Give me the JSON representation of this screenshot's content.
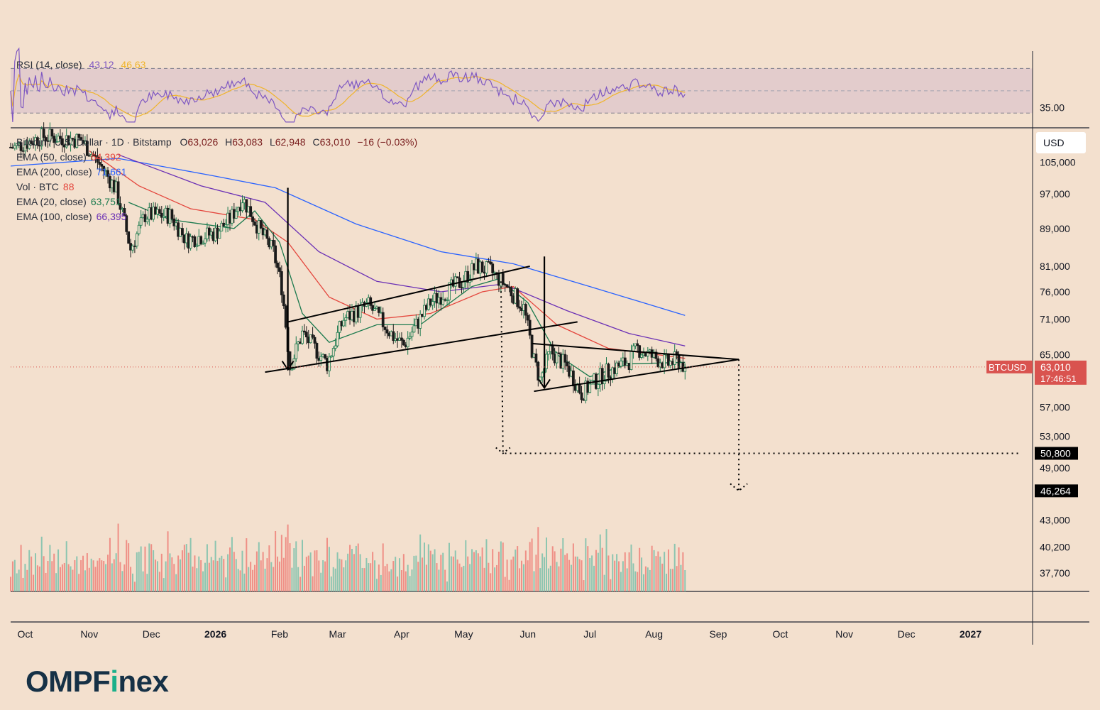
{
  "brand": {
    "logo_main": "OMPF",
    "logo_accent": "i",
    "logo_tail": "nex"
  },
  "rsi_legend": {
    "label": "RSI (14, close)",
    "rsi_value": "43.12",
    "ma_value": "46.63"
  },
  "main_legend": {
    "symbol_line": "Bitcoin / U.S. Dollar · 1D · Bitstamp",
    "ohlc": [
      {
        "k": "O",
        "v": "63,026"
      },
      {
        "k": "H",
        "v": "63,083"
      },
      {
        "k": "L",
        "v": "62,948"
      },
      {
        "k": "C",
        "v": "63,010"
      }
    ],
    "change": "−16 (−0.03%)",
    "indicators": [
      {
        "label": "EMA (50, close)",
        "value": "64,392",
        "color": "#e4463d"
      },
      {
        "label": "EMA (200, close)",
        "value": "71,661",
        "color": "#2962ff"
      },
      {
        "label": "Vol · BTC",
        "value": "88",
        "color": "#e4463d"
      },
      {
        "label": "EMA (20, close)",
        "value": "63,751",
        "color": "#1b7a4e"
      },
      {
        "label": "EMA (100, close)",
        "value": "66,395",
        "color": "#6a2fb5"
      }
    ]
  },
  "price_axis": {
    "currency": "USD",
    "ticks": [
      "105,000",
      "97,000",
      "89,000",
      "81,000",
      "76,000",
      "71,000",
      "65,000",
      "57,000",
      "53,000",
      "49,000",
      "43,000",
      "40,200",
      "37,700"
    ],
    "rsi_ticks": [
      "35.00"
    ],
    "current_label": "BTCUSD",
    "current_price": "63,010",
    "countdown": "17:46:51",
    "target_1": "50,800",
    "target_2": "46,264"
  },
  "time_axis": [
    "Oct",
    "Nov",
    "Dec",
    "2026",
    "Feb",
    "Mar",
    "Apr",
    "May",
    "Jun",
    "Jul",
    "Aug",
    "Sep",
    "Oct",
    "Nov",
    "Dec",
    "2027"
  ],
  "colors": {
    "background": "#f3e0ce",
    "up_candle": "#1b7a4e",
    "down_candle": "#1b1b1b",
    "ema20": "#1b7a4e",
    "ema50": "#e4463d",
    "ema100": "#6a2fb5",
    "ema200": "#2962ff",
    "rsi": "#7e57c2",
    "rsi_ma": "#f0b429",
    "vol_up": "#8cc5b0",
    "vol_down": "#ef8f86",
    "price_tag": "#d9534f",
    "target_tag": "#000000"
  },
  "chart_data": {
    "type": "candlestick",
    "symbol": "BTCUSD",
    "interval": "1D",
    "exchange": "Bitstamp",
    "y_scale": "log",
    "price_range": [
      36000,
      114000
    ],
    "x_range": [
      "2025-09-24",
      "2027-01-31"
    ],
    "price_anchors": [
      {
        "date": "2025-09-26",
        "price": 109000
      },
      {
        "date": "2025-10-10",
        "price": 112000
      },
      {
        "date": "2025-10-28",
        "price": 111000
      },
      {
        "date": "2025-11-08",
        "price": 103000
      },
      {
        "date": "2025-11-14",
        "price": 98000
      },
      {
        "date": "2025-11-21",
        "price": 84500
      },
      {
        "date": "2025-11-28",
        "price": 92000
      },
      {
        "date": "2025-12-10",
        "price": 92000
      },
      {
        "date": "2025-12-18",
        "price": 86500
      },
      {
        "date": "2026-01-01",
        "price": 88000
      },
      {
        "date": "2026-01-08",
        "price": 91000
      },
      {
        "date": "2026-01-14",
        "price": 96000
      },
      {
        "date": "2026-01-22",
        "price": 89000
      },
      {
        "date": "2026-01-29",
        "price": 84000
      },
      {
        "date": "2026-02-02",
        "price": 77000
      },
      {
        "date": "2026-02-06",
        "price": 63000
      },
      {
        "date": "2026-02-12",
        "price": 68500
      },
      {
        "date": "2026-02-24",
        "price": 63500
      },
      {
        "date": "2026-03-04",
        "price": 71000
      },
      {
        "date": "2026-03-16",
        "price": 73500
      },
      {
        "date": "2026-03-28",
        "price": 68000
      },
      {
        "date": "2026-04-02",
        "price": 66500
      },
      {
        "date": "2026-04-15",
        "price": 74000
      },
      {
        "date": "2026-04-30",
        "price": 78000
      },
      {
        "date": "2026-05-07",
        "price": 81000
      },
      {
        "date": "2026-05-14",
        "price": 80000
      },
      {
        "date": "2026-05-22",
        "price": 77000
      },
      {
        "date": "2026-05-30",
        "price": 73000
      },
      {
        "date": "2026-06-04",
        "price": 64000
      },
      {
        "date": "2026-06-07",
        "price": 61000
      },
      {
        "date": "2026-06-12",
        "price": 65500
      },
      {
        "date": "2026-06-20",
        "price": 63000
      },
      {
        "date": "2026-06-27",
        "price": 59000
      },
      {
        "date": "2026-07-08",
        "price": 62000
      },
      {
        "date": "2026-07-20",
        "price": 64000
      },
      {
        "date": "2026-07-24",
        "price": 66000
      },
      {
        "date": "2026-08-01",
        "price": 64500
      },
      {
        "date": "2026-08-08",
        "price": 63500
      },
      {
        "date": "2026-08-12",
        "price": 64200
      },
      {
        "date": "2026-08-16",
        "price": 63010
      }
    ],
    "ema20": [
      {
        "date": "2025-11-20",
        "price": 95000
      },
      {
        "date": "2025-12-10",
        "price": 91000
      },
      {
        "date": "2026-01-10",
        "price": 89000
      },
      {
        "date": "2026-01-20",
        "price": 93000
      },
      {
        "date": "2026-02-01",
        "price": 86000
      },
      {
        "date": "2026-02-12",
        "price": 72000
      },
      {
        "date": "2026-02-25",
        "price": 67000
      },
      {
        "date": "2026-03-20",
        "price": 70000
      },
      {
        "date": "2026-04-10",
        "price": 70000
      },
      {
        "date": "2026-05-05",
        "price": 77000
      },
      {
        "date": "2026-05-18",
        "price": 78500
      },
      {
        "date": "2026-06-01",
        "price": 74000
      },
      {
        "date": "2026-06-15",
        "price": 65000
      },
      {
        "date": "2026-07-01",
        "price": 61500
      },
      {
        "date": "2026-07-20",
        "price": 63500
      },
      {
        "date": "2026-08-16",
        "price": 63751
      }
    ],
    "ema50": [
      {
        "date": "2025-11-01",
        "price": 108000
      },
      {
        "date": "2025-11-25",
        "price": 99000
      },
      {
        "date": "2025-12-20",
        "price": 93500
      },
      {
        "date": "2026-01-20",
        "price": 91000
      },
      {
        "date": "2026-02-05",
        "price": 86000
      },
      {
        "date": "2026-02-25",
        "price": 75000
      },
      {
        "date": "2026-03-20",
        "price": 71000
      },
      {
        "date": "2026-04-15",
        "price": 72000
      },
      {
        "date": "2026-05-10",
        "price": 76000
      },
      {
        "date": "2026-05-25",
        "price": 77000
      },
      {
        "date": "2026-06-15",
        "price": 70000
      },
      {
        "date": "2026-07-10",
        "price": 66000
      },
      {
        "date": "2026-08-16",
        "price": 64392
      }
    ],
    "ema100": [
      {
        "date": "2025-11-15",
        "price": 107000
      },
      {
        "date": "2025-12-25",
        "price": 99000
      },
      {
        "date": "2026-01-25",
        "price": 95000
      },
      {
        "date": "2026-02-20",
        "price": 84000
      },
      {
        "date": "2026-03-20",
        "price": 78000
      },
      {
        "date": "2026-04-20",
        "price": 76000
      },
      {
        "date": "2026-05-20",
        "price": 77500
      },
      {
        "date": "2026-06-20",
        "price": 72500
      },
      {
        "date": "2026-07-20",
        "price": 68500
      },
      {
        "date": "2026-08-16",
        "price": 66395
      }
    ],
    "ema200": [
      {
        "date": "2025-09-24",
        "price": 104000
      },
      {
        "date": "2025-11-15",
        "price": 106000
      },
      {
        "date": "2025-12-31",
        "price": 101500
      },
      {
        "date": "2026-01-30",
        "price": 98500
      },
      {
        "date": "2026-03-10",
        "price": 90000
      },
      {
        "date": "2026-04-20",
        "price": 84000
      },
      {
        "date": "2026-05-25",
        "price": 81500
      },
      {
        "date": "2026-07-01",
        "price": 77000
      },
      {
        "date": "2026-08-16",
        "price": 71661
      }
    ],
    "rsi": {
      "latest": 43.12,
      "ma_latest": 46.63,
      "band_upper": 70,
      "band_lower": 30
    },
    "annotations": {
      "rising_channel_upper": [
        {
          "date": "2026-02-05",
          "price": 70500
        },
        {
          "date": "2026-06-02",
          "price": 81000
        }
      ],
      "rising_channel_lower": [
        {
          "date": "2026-01-25",
          "price": 62200
        },
        {
          "date": "2026-06-25",
          "price": 70500
        }
      ],
      "triangle_upper": [
        {
          "date": "2026-06-03",
          "price": 66800
        },
        {
          "date": "2026-09-11",
          "price": 64200
        }
      ],
      "triangle_lower": [
        {
          "date": "2026-06-04",
          "price": 59300
        },
        {
          "date": "2026-09-11",
          "price": 64200
        }
      ],
      "pole_1": [
        {
          "date": "2026-02-05",
          "price": 98500
        },
        {
          "date": "2026-02-05",
          "price": 62600
        }
      ],
      "pole_2": [
        {
          "date": "2026-06-09",
          "price": 83000
        },
        {
          "date": "2026-06-09",
          "price": 59800
        }
      ],
      "target_1_path": [
        {
          "date": "2026-05-19",
          "price": 78000
        },
        {
          "date": "2026-05-20",
          "price": 50800
        },
        {
          "date": "2027-01-25",
          "price": 50800
        }
      ],
      "target_2_path": [
        {
          "date": "2026-09-11",
          "price": 64200
        },
        {
          "date": "2026-09-11",
          "price": 46264
        }
      ],
      "current_price_line": 63010,
      "target_1": 50800,
      "target_2": 46264
    }
  }
}
